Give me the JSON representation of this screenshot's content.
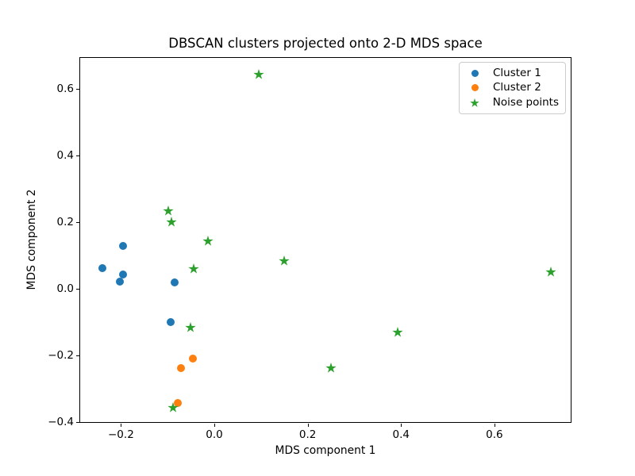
{
  "figure": {
    "background": "#ffffff",
    "frame_color": "#000000"
  },
  "chart_data": {
    "type": "scatter",
    "title": "DBSCAN clusters projected onto 2-D MDS space",
    "xlabel": "MDS component 1",
    "ylabel": "MDS component 2",
    "xlim": [
      -0.289,
      0.765
    ],
    "ylim": [
      -0.402,
      0.696
    ],
    "grid": false,
    "xticks": [
      {
        "v": -0.2,
        "label": "−0.2"
      },
      {
        "v": 0.0,
        "label": "0.0"
      },
      {
        "v": 0.2,
        "label": "0.2"
      },
      {
        "v": 0.4,
        "label": "0.4"
      },
      {
        "v": 0.6,
        "label": "0.6"
      }
    ],
    "yticks": [
      {
        "v": 0.6,
        "label": "0.6"
      },
      {
        "v": 0.4,
        "label": "0.4"
      },
      {
        "v": 0.2,
        "label": "0.2"
      },
      {
        "v": 0.0,
        "label": "0.0"
      },
      {
        "v": -0.2,
        "label": "−0.2"
      },
      {
        "v": -0.4,
        "label": "−0.4"
      }
    ],
    "legend": {
      "position": "upper right",
      "entries": [
        {
          "label": "Cluster 1",
          "marker": "circle",
          "color": "#1f77b4"
        },
        {
          "label": "Cluster 2",
          "marker": "circle",
          "color": "#ff7f0e"
        },
        {
          "label": "Noise points",
          "marker": "star",
          "color": "#2ca02c"
        }
      ]
    },
    "series": [
      {
        "name": "Cluster 1",
        "marker": "circle",
        "color": "#1f77b4",
        "points": [
          [
            -0.241,
            0.065
          ],
          [
            -0.197,
            0.132
          ],
          [
            -0.197,
            0.045
          ],
          [
            -0.204,
            0.025
          ],
          [
            -0.086,
            0.022
          ],
          [
            -0.095,
            -0.096
          ]
        ]
      },
      {
        "name": "Cluster 2",
        "marker": "circle",
        "color": "#ff7f0e",
        "points": [
          [
            -0.048,
            -0.207
          ],
          [
            -0.074,
            -0.234
          ],
          [
            -0.08,
            -0.34
          ]
        ]
      },
      {
        "name": "Noise points",
        "marker": "star",
        "color": "#2ca02c",
        "points": [
          [
            0.094,
            0.646
          ],
          [
            -0.1,
            0.237
          ],
          [
            -0.093,
            0.202
          ],
          [
            -0.015,
            0.146
          ],
          [
            -0.046,
            0.063
          ],
          [
            0.148,
            0.086
          ],
          [
            0.719,
            0.053
          ],
          [
            -0.053,
            -0.114
          ],
          [
            0.391,
            -0.128
          ],
          [
            0.248,
            -0.234
          ],
          [
            -0.091,
            -0.355
          ]
        ]
      }
    ]
  }
}
